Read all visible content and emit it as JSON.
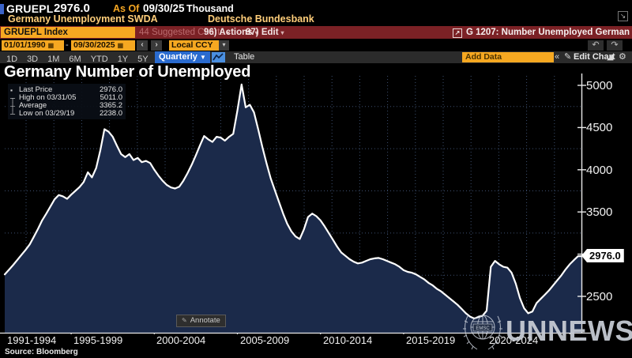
{
  "header": {
    "ticker": "GRUEPL",
    "price": "2976.0",
    "as_of_label": "As Of",
    "as_of_date": "09/30/25",
    "unit": "Thousand",
    "description": "Germany Unemployment SWDA",
    "source_org": "Deutsche Bundesbank"
  },
  "command_bar": {
    "security": "GRUEPL Index",
    "suggested_charts": "44 Suggested Charts",
    "actions": "96) Actions",
    "edit": "97) Edit",
    "chart_tag": "G 1207: Number Unemployed German"
  },
  "range_bar": {
    "start_date": "01/01/1990",
    "separator": "-",
    "end_date": "09/30/2025",
    "currency": "Local CCY"
  },
  "toolbar": {
    "periods": [
      "1D",
      "3D",
      "1M",
      "6M",
      "YTD",
      "1Y",
      "5Y",
      "Max"
    ],
    "frequency": "Quarterly",
    "table_label": "Table",
    "add_data_placeholder": "Add Data",
    "collapse": "«",
    "edit_chart_label": "Edit Chart"
  },
  "chart": {
    "title": "Germany Number of Unemployed",
    "legend": [
      {
        "icon": "last-price-marker",
        "label": "Last Price",
        "value": "2976.0"
      },
      {
        "icon": "high-marker",
        "label": "High on 03/31/05",
        "value": "5011.0"
      },
      {
        "icon": "average-marker",
        "label": "Average",
        "value": "3365.2"
      },
      {
        "icon": "low-marker",
        "label": "Low on 03/29/19",
        "value": "2238.0"
      }
    ],
    "last_price_label": "2976.0",
    "annotate_label": "Annotate",
    "source": "Source: Bloomberg",
    "watermark": "UNNEWS",
    "emblem_text": "EMSC"
  },
  "chart_data": {
    "type": "area",
    "title": "Germany Number of Unemployed",
    "units": "Thousand",
    "frequency": "Quarterly",
    "xlim": [
      1991.0,
      2025.75
    ],
    "ylim": [
      2070,
      5100
    ],
    "x_start": 1991.0,
    "x_step": 0.25,
    "values": [
      2760,
      2815,
      2870,
      2930,
      2990,
      3050,
      3115,
      3205,
      3300,
      3400,
      3480,
      3565,
      3650,
      3700,
      3685,
      3655,
      3705,
      3750,
      3795,
      3855,
      3970,
      3910,
      4020,
      4230,
      4480,
      4450,
      4390,
      4285,
      4185,
      4150,
      4185,
      4115,
      4140,
      4090,
      4105,
      4080,
      4000,
      3930,
      3870,
      3820,
      3790,
      3778,
      3800,
      3870,
      3960,
      4060,
      4170,
      4290,
      4400,
      4360,
      4330,
      4390,
      4380,
      4345,
      4390,
      4425,
      4700,
      5011,
      4740,
      4770,
      4680,
      4480,
      4270,
      4080,
      3900,
      3760,
      3620,
      3480,
      3360,
      3270,
      3210,
      3180,
      3290,
      3440,
      3480,
      3450,
      3400,
      3330,
      3250,
      3170,
      3090,
      3020,
      2980,
      2940,
      2910,
      2890,
      2900,
      2920,
      2940,
      2950,
      2955,
      2940,
      2920,
      2900,
      2880,
      2850,
      2810,
      2790,
      2780,
      2760,
      2730,
      2700,
      2660,
      2630,
      2590,
      2560,
      2520,
      2480,
      2440,
      2400,
      2350,
      2300,
      2260,
      2238,
      2255,
      2270,
      2330,
      2850,
      2920,
      2880,
      2850,
      2840,
      2780,
      2650,
      2480,
      2360,
      2300,
      2320,
      2420,
      2470,
      2520,
      2570,
      2630,
      2690,
      2750,
      2820,
      2880,
      2930,
      2976
    ],
    "last_price": 2976.0,
    "high": {
      "date": "03/31/05",
      "value": 5011.0
    },
    "average": 3365.2,
    "low": {
      "date": "03/29/19",
      "value": 2238.0
    },
    "y_tick_labels": [
      "5000",
      "4500",
      "4000",
      "3500",
      "2500"
    ],
    "y_tick_label_values": [
      5000,
      4500,
      4000,
      3500,
      2500
    ],
    "y_tick_marks": [
      5000,
      4500,
      4000,
      3500,
      3000,
      2500
    ],
    "x_tick_labels": [
      "1991-1994",
      "1995-1999",
      "2000-2004",
      "2005-2009",
      "2010-2014",
      "2015-2019",
      "2020-2024"
    ],
    "x_section_starts": [
      1991,
      1995,
      2000,
      2005,
      2010,
      2015,
      2020
    ],
    "x_boundaries": [
      1995,
      2000,
      2005,
      2010,
      2015,
      2020,
      2025
    ],
    "grid": "dotted",
    "legend_position": "top-left",
    "line_color": "#ffffff",
    "fill_color": "#1b2a4a",
    "bg_color": "#000000",
    "grid_color": "#3d4f6f",
    "accent_color": "#f6a821",
    "command_bar_color": "#7b2125",
    "highlight_blue": "#2a6bcf"
  },
  "icons": {
    "dropdown": "▾",
    "dropdown_filled": "▼",
    "calendar": "▦",
    "prev": "‹",
    "next": "›",
    "undo": "↶",
    "redo": "↷",
    "collapse": "«",
    "pencil": "✎",
    "gear": "⚙",
    "export": "↗",
    "expand": "↘",
    "chart_edit": "◢",
    "legend_last": "▪",
    "legend_high": "┬",
    "legend_avg": "┼",
    "legend_low": "┴"
  }
}
